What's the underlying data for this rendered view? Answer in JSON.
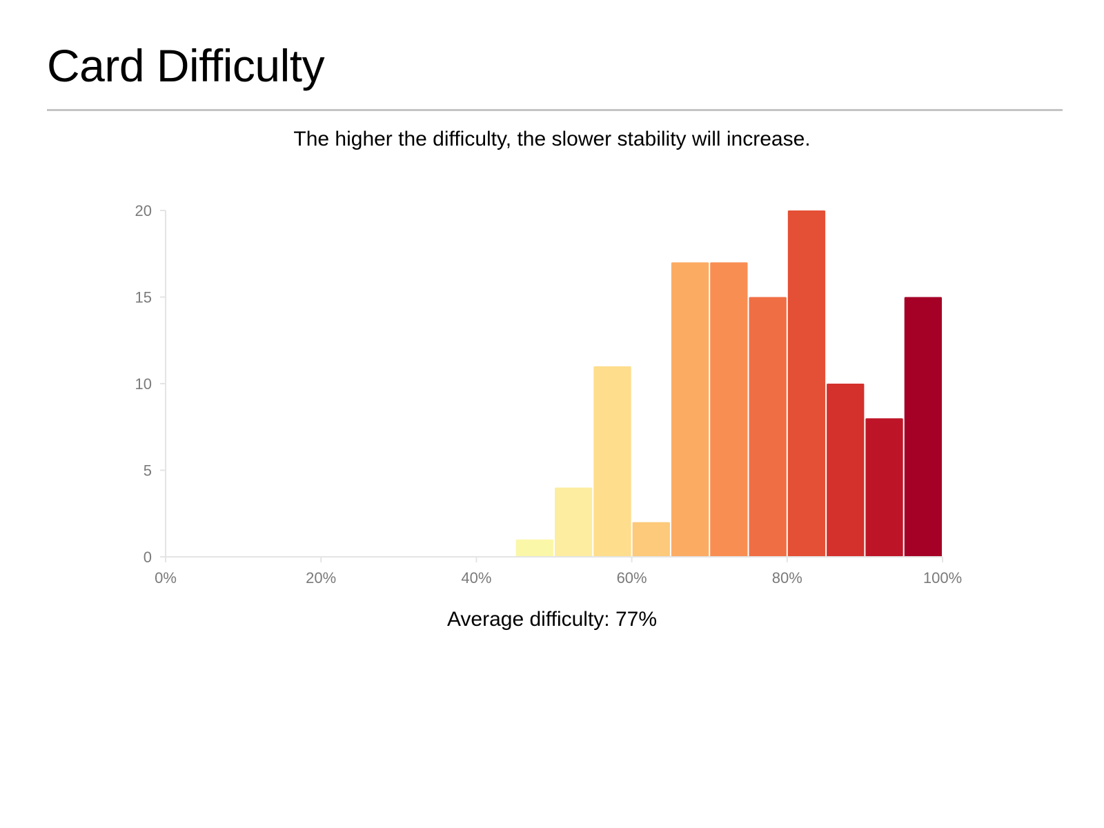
{
  "header": {
    "title": "Card Difficulty"
  },
  "subtitle": "The higher the difficulty, the slower stability will increase.",
  "footer": {
    "label": "Average difficulty:",
    "value": "77%"
  },
  "chart_data": {
    "type": "bar",
    "title": "",
    "xlabel": "",
    "ylabel": "",
    "xlim": [
      0,
      100
    ],
    "ylim": [
      0,
      20
    ],
    "x_ticks": [
      0,
      20,
      40,
      60,
      80,
      100
    ],
    "x_tick_labels": [
      "0%",
      "20%",
      "40%",
      "60%",
      "80%",
      "100%"
    ],
    "y_ticks": [
      0,
      5,
      10,
      15,
      20
    ],
    "y_tick_labels": [
      "0",
      "5",
      "10",
      "15",
      "20"
    ],
    "grid": false,
    "bins": [
      {
        "start": 45,
        "end": 50,
        "value": 1,
        "color": "#fbf7a9"
      },
      {
        "start": 50,
        "end": 55,
        "value": 4,
        "color": "#fcedA0"
      },
      {
        "start": 55,
        "end": 60,
        "value": 11,
        "color": "#fedd8c"
      },
      {
        "start": 60,
        "end": 65,
        "value": 2,
        "color": "#fdc97a"
      },
      {
        "start": 65,
        "end": 70,
        "value": 17,
        "color": "#fcab63"
      },
      {
        "start": 70,
        "end": 75,
        "value": 17,
        "color": "#f98e52"
      },
      {
        "start": 75,
        "end": 80,
        "value": 15,
        "color": "#f06e43"
      },
      {
        "start": 80,
        "end": 85,
        "value": 20,
        "color": "#e45035"
      },
      {
        "start": 85,
        "end": 90,
        "value": 10,
        "color": "#d4302c"
      },
      {
        "start": 90,
        "end": 95,
        "value": 8,
        "color": "#bd1527"
      },
      {
        "start": 95,
        "end": 100,
        "value": 15,
        "color": "#a50026"
      }
    ]
  }
}
